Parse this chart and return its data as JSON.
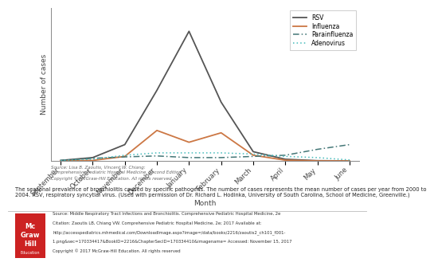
{
  "months": [
    "September",
    "October",
    "November",
    "December",
    "January",
    "February",
    "March",
    "April",
    "May",
    "June"
  ],
  "rsv": [
    0.3,
    1.5,
    7,
    30,
    55,
    25,
    4,
    0.8,
    0.2,
    0.1
  ],
  "influenza": [
    0.1,
    0.3,
    2,
    13,
    8,
    12,
    2.5,
    0.4,
    0.1,
    0.1
  ],
  "parainfluenza": [
    0.3,
    1.2,
    1.8,
    2.2,
    1.5,
    1.5,
    2,
    2.5,
    5,
    7
  ],
  "adenovirus": [
    0.3,
    0.8,
    2.5,
    3.5,
    3.5,
    3.5,
    3,
    2,
    1.5,
    0.5
  ],
  "rsv_color": "#555555",
  "influenza_color": "#cc7744",
  "parainfluenza_color": "#447777",
  "adenovirus_color": "#44bbbb",
  "xlabel": "Month",
  "ylabel": "Number of cases",
  "source_text": "Source: Lisa B. Zaoutis, Vincent W. Chiang:\nComprehensive Pediatric Hospital Medicine, Second Edition\nCopyright © McGraw-Hill Education. All rights reserved.",
  "caption_line1": "The seasonal prevalence of bronchiolitis caused by specific pathogens. The number of cases represents the mean number of cases per year from 2000 to",
  "caption_line2": "2004. RSV, respiratory syncytial virus. (Used with permission of Dr. Richard L. Hodinka, University of South Carolina, School of Medicine, Greenville.)",
  "source2_line1": "Source: Middle Respiratory Tract Infections and Bronchiolitis. Comprehensive Pediatric Hospital Medicine, 2e",
  "source2_line2": "Citation: Zaoutis LB, Chiang VW. Comprehensive Pediatric Hospital Medicine, 2e; 2017 Available at:",
  "source2_line3": "http://accesspediatrics.mhmedical.com/DownloadImage.aspx?image=/data/books/2216/zaoutis2_ch101_f001-",
  "source2_line4": "1.png&sec=170334417&BookID=2216&ChapterSecID=170334410&imagename= Accessed: November 15, 2017",
  "source2_line5": "Copyright © 2017 McGraw-Hill Education. All rights reserved",
  "logo_text1": "Mc",
  "logo_text2": "Graw",
  "logo_text3": "Hill",
  "logo_text4": "Education",
  "logo_color": "#cc2222"
}
